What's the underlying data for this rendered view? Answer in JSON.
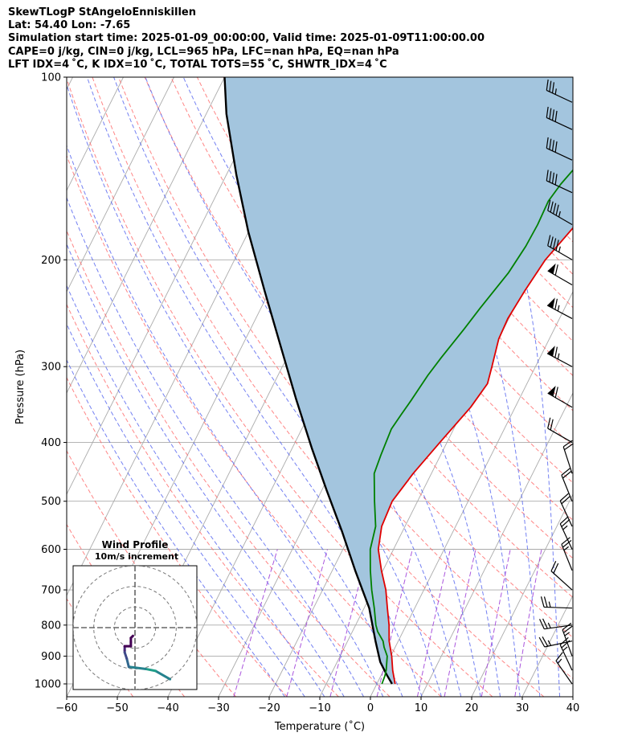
{
  "header": {
    "line1": "SkewTLogP StAngeloEnniskillen",
    "line2": "Lat: 54.40   Lon: -7.65",
    "line3": "Simulation start time: 2025-01-09_00:00:00, Valid time: 2025-01-09T11:00:00.00",
    "line4": "CAPE=0 j/kg, CIN=0 j/kg, LCL=965 hPa, LFC=nan hPa, EQ=nan hPa",
    "line5": "LFT IDX=4 ˚C, K IDX=10 ˚C, TOTAL TOTS=55 ˚C, SHWTR_IDX=4 ˚C"
  },
  "chart_data": [
    {
      "type": "skew-t",
      "xlabel": "Temperature (˚C)",
      "ylabel": "Pressure (hPa)",
      "xlim": [
        -60,
        40
      ],
      "ylim": [
        1050,
        100
      ],
      "y_scale": "log",
      "grid": true,
      "x_ticks": [
        "−60",
        "−50",
        "−40",
        "−30",
        "−20",
        "−10",
        "0",
        "10",
        "20",
        "30",
        "40"
      ],
      "y_ticks": [
        "100",
        "200",
        "300",
        "400",
        "500",
        "600",
        "700",
        "800",
        "900",
        "1000"
      ],
      "colors": {
        "temperature": "#e00000",
        "dewpoint": "#008000",
        "parcel": "#000000",
        "cape_fill": "#a3c5de",
        "dry_adiabat": "#ff6666",
        "moist_adiabat": "#4455ee",
        "mixing_ratio": "#aa55dd",
        "isotherm": "#aaaaaa"
      },
      "series": [
        {
          "key": "temperature",
          "points": [
            [
              3.6,
              1000
            ],
            [
              1.8,
              950
            ],
            [
              0.2,
              900
            ],
            [
              -1.8,
              850
            ],
            [
              -3.4,
              800
            ],
            [
              -5.4,
              750
            ],
            [
              -7.5,
              700
            ],
            [
              -10.3,
              650
            ],
            [
              -13.0,
              600
            ],
            [
              -14.6,
              550
            ],
            [
              -15.0,
              500
            ],
            [
              -13.6,
              450
            ],
            [
              -11.4,
              400
            ],
            [
              -8.8,
              350
            ],
            [
              -7.8,
              320
            ],
            [
              -8.6,
              300
            ],
            [
              -10.0,
              270
            ],
            [
              -10.2,
              250
            ],
            [
              -9.6,
              225
            ],
            [
              -8.6,
              200
            ],
            [
              -5.5,
              170
            ],
            [
              -3.0,
              150
            ],
            [
              -1.0,
              135
            ],
            [
              0.8,
              125
            ],
            [
              2.2,
              115
            ],
            [
              3.8,
              107
            ],
            [
              5.5,
              100
            ]
          ]
        },
        {
          "key": "dewpoint",
          "points": [
            [
              1.0,
              1000
            ],
            [
              0.8,
              970
            ],
            [
              0.5,
              950
            ],
            [
              -0.7,
              900
            ],
            [
              -2.2,
              870
            ],
            [
              -3.0,
              850
            ],
            [
              -5.0,
              820
            ],
            [
              -6.0,
              800
            ],
            [
              -8.0,
              750
            ],
            [
              -10.3,
              700
            ],
            [
              -12.5,
              650
            ],
            [
              -14.6,
              600
            ],
            [
              -15.8,
              550
            ],
            [
              -18.5,
              500
            ],
            [
              -21.3,
              450
            ],
            [
              -21.8,
              420
            ],
            [
              -22.3,
              380
            ],
            [
              -21.8,
              360
            ],
            [
              -21.2,
              340
            ],
            [
              -20.4,
              310
            ],
            [
              -19.5,
              290
            ],
            [
              -17.8,
              260
            ],
            [
              -16.7,
              240
            ],
            [
              -14.6,
              210
            ],
            [
              -13.8,
              190
            ],
            [
              -13.6,
              175
            ],
            [
              -13.8,
              160
            ],
            [
              -13.0,
              150
            ],
            [
              -11.0,
              135
            ],
            [
              -8.2,
              120
            ],
            [
              -5.5,
              107
            ],
            [
              -3.5,
              100
            ]
          ]
        },
        {
          "key": "parcel",
          "points": [
            [
              3.0,
              1000
            ],
            [
              1.0,
              965
            ],
            [
              -1.5,
              920
            ],
            [
              -4.5,
              850
            ],
            [
              -9.0,
              750
            ],
            [
              -15.5,
              650
            ],
            [
              -22.0,
              560
            ],
            [
              -29.0,
              480
            ],
            [
              -36.0,
              410
            ],
            [
              -44.0,
              340
            ],
            [
              -52.0,
              280
            ],
            [
              -61.0,
              225
            ],
            [
              -70.0,
              180
            ],
            [
              -78.0,
              145
            ],
            [
              -86.0,
              115
            ],
            [
              -90.0,
              100
            ]
          ]
        }
      ],
      "wind_barbs": [
        {
          "p": 1000,
          "dir": 325,
          "spd_kt": 15
        },
        {
          "p": 950,
          "dir": 335,
          "spd_kt": 25
        },
        {
          "p": 900,
          "dir": 340,
          "spd_kt": 25
        },
        {
          "p": 850,
          "dir": 258,
          "spd_kt": 25
        },
        {
          "p": 800,
          "dir": 262,
          "spd_kt": 25
        },
        {
          "p": 750,
          "dir": 272,
          "spd_kt": 25
        },
        {
          "p": 700,
          "dir": 312,
          "spd_kt": 20
        },
        {
          "p": 650,
          "dir": 338,
          "spd_kt": 25
        },
        {
          "p": 600,
          "dir": 335,
          "spd_kt": 25
        },
        {
          "p": 550,
          "dir": 335,
          "spd_kt": 20
        },
        {
          "p": 500,
          "dir": 338,
          "spd_kt": 20
        },
        {
          "p": 450,
          "dir": 342,
          "spd_kt": 20
        },
        {
          "p": 400,
          "dir": 300,
          "spd_kt": 20
        },
        {
          "p": 350,
          "dir": 300,
          "spd_kt": 60
        },
        {
          "p": 300,
          "dir": 298,
          "spd_kt": 65
        },
        {
          "p": 250,
          "dir": 298,
          "spd_kt": 65
        },
        {
          "p": 220,
          "dir": 300,
          "spd_kt": 60
        },
        {
          "p": 200,
          "dir": 300,
          "spd_kt": 45
        },
        {
          "p": 175,
          "dir": 300,
          "spd_kt": 45
        },
        {
          "p": 155,
          "dir": 295,
          "spd_kt": 40
        },
        {
          "p": 137,
          "dir": 295,
          "spd_kt": 40
        },
        {
          "p": 122,
          "dir": 295,
          "spd_kt": 40
        },
        {
          "p": 110,
          "dir": 295,
          "spd_kt": 35
        }
      ]
    },
    {
      "type": "hodograph",
      "title": "Wind Profile",
      "subtitle": "10m/s increment",
      "ring_step_ms": 10,
      "rings": 3,
      "xlim": [
        -30,
        30
      ],
      "ylim": [
        -30,
        30
      ],
      "colormap": "viridis",
      "points": [
        [
          17,
          -25
        ],
        [
          10,
          -21
        ],
        [
          5,
          -20
        ],
        [
          -3,
          -19
        ],
        [
          -4,
          -15
        ],
        [
          -5,
          -12
        ],
        [
          -5,
          -11
        ],
        [
          -5,
          -9
        ],
        [
          -4,
          -9
        ],
        [
          -3,
          -9
        ],
        [
          -2,
          -9
        ],
        [
          -2,
          -7
        ],
        [
          -2,
          -5
        ],
        [
          -1,
          -4
        ]
      ]
    }
  ]
}
